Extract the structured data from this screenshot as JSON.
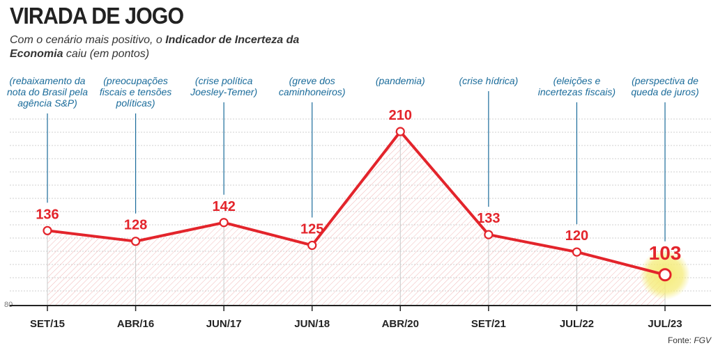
{
  "header": {
    "title": "VIRADA DE JOGO",
    "subtitle_part1": "Com o cenário mais positivo, o ",
    "subtitle_bold": "Indicador de Incerteza da Economia",
    "subtitle_part2": " caiu (em pontos)"
  },
  "source": {
    "prefix": "Fonte: ",
    "name": "FGV"
  },
  "colors": {
    "line": "#e3242b",
    "annotation": "#1a6b9a",
    "highlight": "#f5ec7a"
  },
  "chart_data": {
    "type": "line",
    "title": "VIRADA DE JOGO",
    "xlabel": "",
    "ylabel": "",
    "categories": [
      "SET/15",
      "ABR/16",
      "JUN/17",
      "JUN/18",
      "ABR/20",
      "SET/21",
      "JUL/22",
      "JUL/23"
    ],
    "series": [
      {
        "values": [
          136,
          128,
          142,
          125,
          210,
          133,
          120,
          103
        ]
      }
    ],
    "annotations": [
      [
        "(rebaixamento da",
        "nota do Brasil pela",
        "agência S&P)"
      ],
      [
        "(preocupações",
        "fiscais e tensões",
        "políticas)"
      ],
      [
        "(crise política",
        "Joesley-Temer)"
      ],
      [
        "(greve dos",
        "caminhoneiros)"
      ],
      [
        "(pandemia)"
      ],
      [
        "(crise hídrica)"
      ],
      [
        "(eleições e",
        "incertezas fiscais)"
      ],
      [
        "(perspectiva de",
        "queda de juros)"
      ]
    ],
    "ytick_labels": [
      "80"
    ],
    "ylim": [
      80,
      230
    ],
    "highlight_last": true,
    "grid": true
  }
}
